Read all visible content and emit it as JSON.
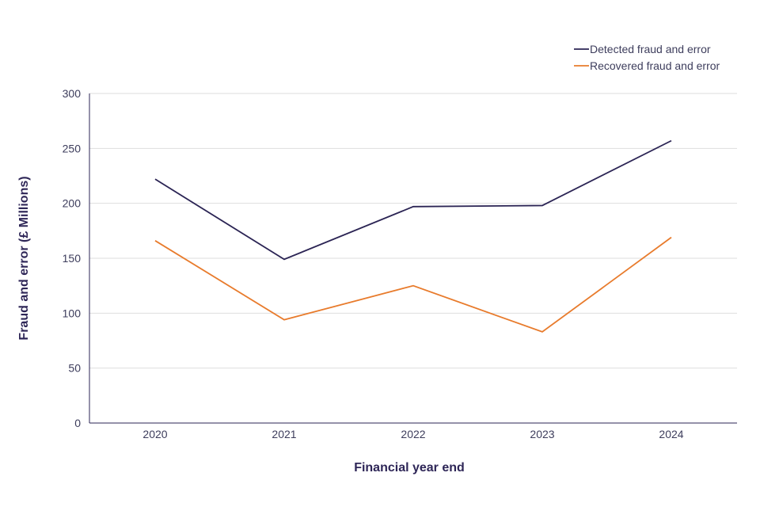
{
  "chart_data": {
    "type": "line",
    "title": "",
    "xlabel": "Financial year end",
    "ylabel": "Fraud and error (£ Millions)",
    "categories": [
      "2020",
      "2021",
      "2022",
      "2023",
      "2024"
    ],
    "ylim": [
      0,
      300
    ],
    "yticks": [
      "0",
      "50",
      "100",
      "150",
      "200",
      "250",
      "300"
    ],
    "grid": true,
    "legend_position": "top-right",
    "series": [
      {
        "name": "Detected fraud and error",
        "color": "#2b2454",
        "values": [
          222,
          149,
          197,
          198,
          257
        ]
      },
      {
        "name": "Recovered fraud and error",
        "color": "#e87b2c",
        "values": [
          166,
          94,
          125,
          83,
          169
        ]
      }
    ]
  }
}
